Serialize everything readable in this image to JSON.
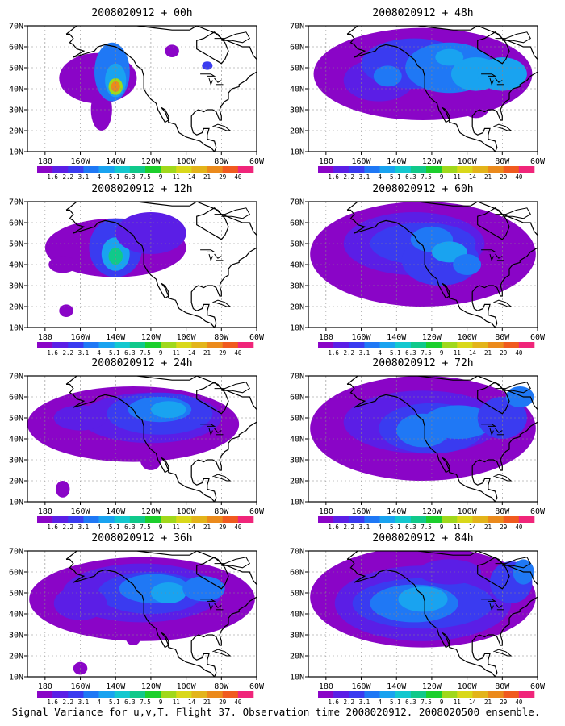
{
  "panels": [
    {
      "title": "2008020912 + 00h"
    },
    {
      "title": "2008020912 + 48h"
    },
    {
      "title": "2008020912 + 12h"
    },
    {
      "title": "2008020912 + 60h"
    },
    {
      "title": "2008020912 + 24h"
    },
    {
      "title": "2008020912 + 72h"
    },
    {
      "title": "2008020912 + 36h"
    },
    {
      "title": "2008020912 + 84h"
    }
  ],
  "lat_ticks": [
    "70N",
    "60N",
    "50N",
    "40N",
    "30N",
    "20N",
    "10N"
  ],
  "lon_ticks": [
    "180",
    "160W",
    "140W",
    "120W",
    "100W",
    "80W",
    "60W"
  ],
  "colorbar": {
    "labels": [
      "1.6",
      "2.2",
      "3.1",
      "4",
      "5.1",
      "6.3",
      "7.5",
      "9",
      "11",
      "14",
      "21",
      "29",
      "40"
    ],
    "colors": [
      "#8a05c7",
      "#5b1ee6",
      "#3a3bf0",
      "#1f78f5",
      "#19a3f0",
      "#14c8cf",
      "#10c98a",
      "#1ccf2c",
      "#a0d81b",
      "#d9d81a",
      "#e3b41a",
      "#eb8a1c",
      "#f05a1f",
      "#f0257a"
    ]
  },
  "footer": "Signal Variance for u,v,T. Flight 37. Observation time 2008020912. 2008020500 ensemble."
}
